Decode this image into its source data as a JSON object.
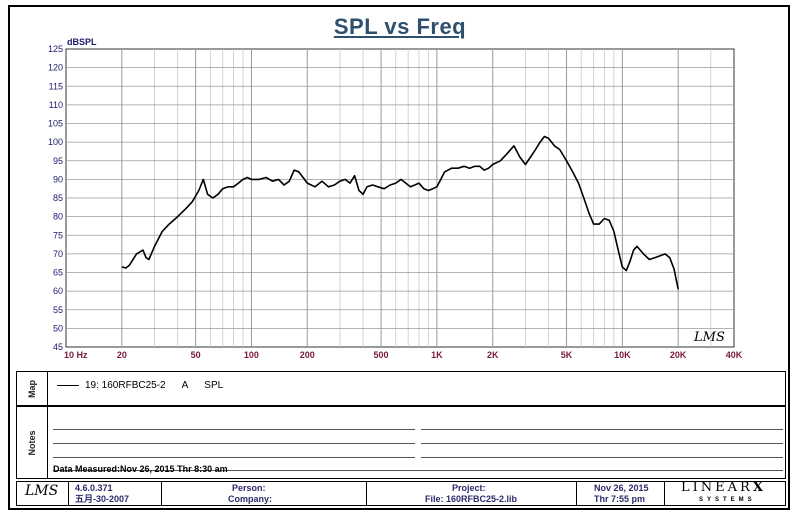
{
  "chart_data": {
    "type": "line",
    "title": "SPL vs Freq",
    "ylabel": "dBSPL",
    "xscale": "log",
    "xlim": [
      10,
      40000
    ],
    "ylim": [
      45,
      125
    ],
    "grid": true,
    "x_tick_labels": [
      "10 Hz",
      "20",
      "50",
      "100",
      "200",
      "500",
      "1K",
      "2K",
      "5K",
      "10K",
      "20K",
      "40K"
    ],
    "x_tick_values": [
      10,
      20,
      50,
      100,
      200,
      500,
      1000,
      2000,
      5000,
      10000,
      20000,
      40000
    ],
    "y_ticks": [
      45,
      50,
      55,
      60,
      65,
      70,
      75,
      80,
      85,
      90,
      95,
      100,
      105,
      110,
      115,
      120,
      125
    ],
    "series": [
      {
        "name": "19: 160RFBC25-2",
        "x": [
          20,
          21,
          22,
          24,
          26,
          27,
          28,
          30,
          33,
          36,
          40,
          44,
          48,
          52,
          55,
          58,
          62,
          66,
          70,
          75,
          80,
          85,
          90,
          95,
          100,
          110,
          120,
          130,
          140,
          150,
          160,
          170,
          180,
          200,
          220,
          240,
          260,
          280,
          300,
          320,
          340,
          360,
          380,
          400,
          420,
          450,
          480,
          520,
          560,
          600,
          640,
          680,
          720,
          760,
          800,
          850,
          900,
          950,
          1000,
          1050,
          1100,
          1200,
          1300,
          1400,
          1500,
          1600,
          1700,
          1800,
          1900,
          2000,
          2200,
          2400,
          2600,
          2800,
          3000,
          3200,
          3400,
          3600,
          3800,
          4000,
          4300,
          4600,
          5000,
          5400,
          5800,
          6200,
          6600,
          7000,
          7500,
          8000,
          8500,
          9000,
          9500,
          10000,
          10500,
          11000,
          11500,
          12000,
          13000,
          14000,
          15000,
          16000,
          17000,
          18000,
          19000,
          20000
        ],
        "values": [
          66.5,
          66.2,
          67,
          70,
          71,
          69,
          68.5,
          72,
          76,
          78,
          80,
          82,
          84,
          87,
          90,
          86,
          85,
          86,
          87.5,
          88,
          88,
          89,
          90,
          90.5,
          90,
          90,
          90.5,
          89.5,
          90,
          88.5,
          89.5,
          92.5,
          92,
          89,
          88,
          89.5,
          88,
          88.5,
          89.5,
          90,
          89,
          91,
          87,
          86,
          88,
          88.5,
          88,
          87.5,
          88.5,
          89,
          90,
          89,
          88,
          88.5,
          89,
          87.5,
          87,
          87.5,
          88,
          90,
          92,
          93,
          93,
          93.5,
          93,
          93.5,
          93.5,
          92.5,
          93,
          94,
          95,
          97,
          99,
          96,
          94,
          96,
          98,
          100,
          101.5,
          101,
          99,
          98,
          95,
          92,
          89,
          85,
          81,
          78,
          78,
          79.5,
          79,
          76,
          71,
          66.5,
          65.5,
          68,
          71,
          72,
          70,
          68.5,
          69,
          69.5,
          70,
          69,
          66,
          60.5
        ]
      }
    ],
    "legend_text": "A",
    "legend_measure": "SPL"
  },
  "logo_corner": "LMS",
  "sections": {
    "map_label": "Map",
    "notes_label": "Notes",
    "data_measured_label": "Data Measured:",
    "data_measured_value": "Nov 26, 2015  Thr  8:30 am"
  },
  "footer": {
    "logo": "LMS",
    "version": "4.6.0.371",
    "date_code": "五月-30-2007",
    "person_label": "Person:",
    "company_label": "Company:",
    "project_label": "Project:",
    "file_label": "File:",
    "file_value": "160RFBC25-2.lib",
    "date": "Nov 26, 2015",
    "time": "Thr  7:55 pm",
    "brand_top": "LINEAR",
    "brand_x": "X",
    "brand_bottom": "SYSTEMS"
  },
  "colors": {
    "title": "#2f4f6f",
    "tick_x": "#7a1a3a",
    "tick_y": "#1a1a6a",
    "curve": "#000000",
    "grid_major": "#9a9a9a",
    "grid_minor": "#c8c8c8"
  }
}
